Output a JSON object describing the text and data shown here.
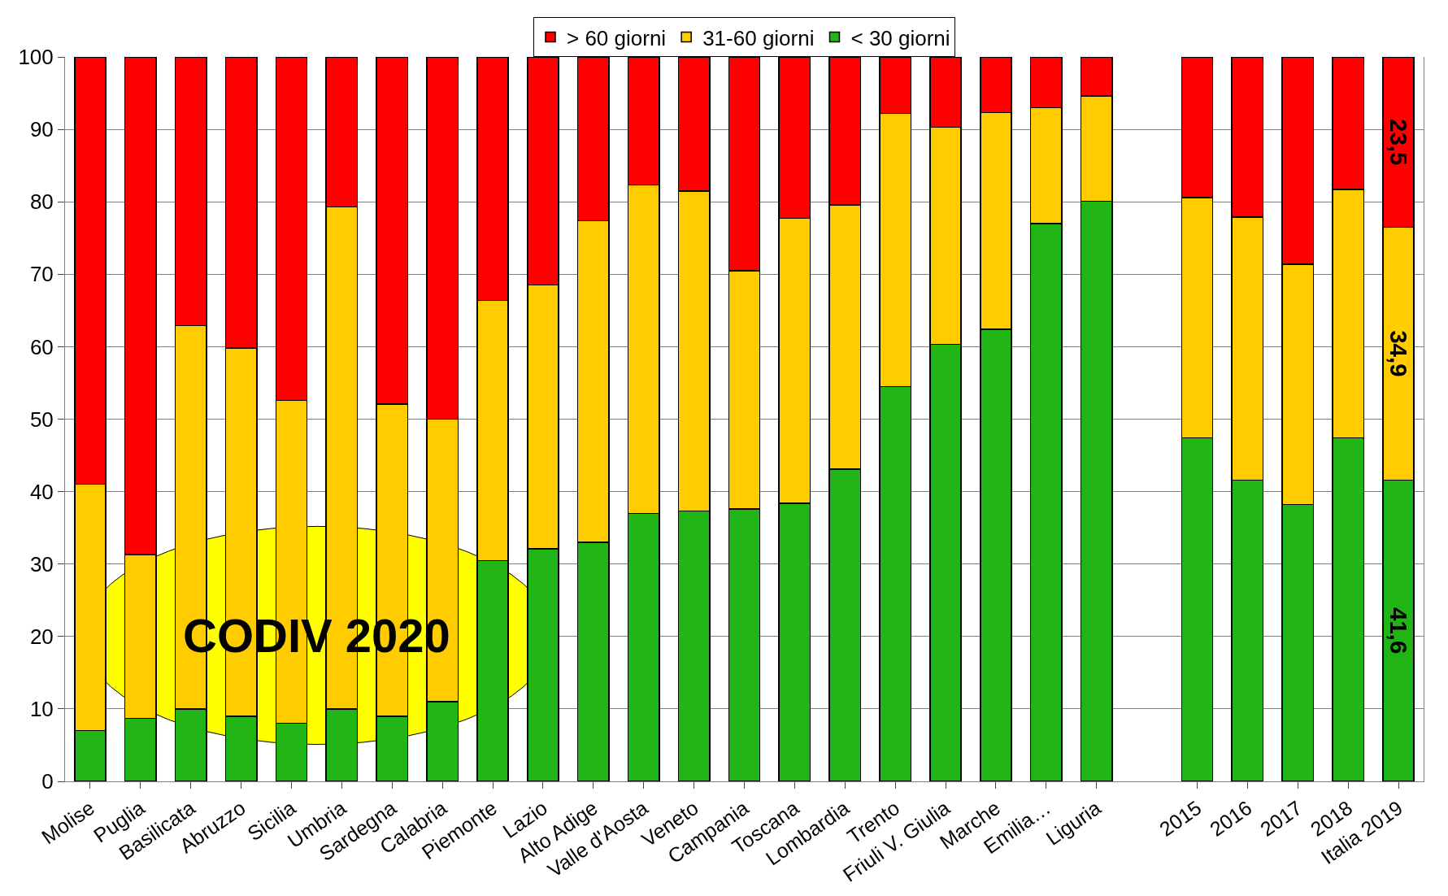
{
  "chart_data": {
    "type": "bar",
    "stacked": true,
    "categories": [
      "Molise",
      "Puglia",
      "Basilicata",
      "Abruzzo",
      "Sicilia",
      "Umbria",
      "Sardegna",
      "Calabria",
      "Piemonte",
      "Lazio",
      "Alto Adige",
      "Valle d'Aosta",
      "Veneto",
      "Campania",
      "Toscana",
      "Lombardia",
      "Trento",
      "Friuli V. Giulia",
      "Marche",
      "Emilia…",
      "Liguria",
      null,
      "2015",
      "2016",
      "2017",
      "2018",
      "Italia 2019"
    ],
    "series": [
      {
        "name": "< 30 giorni",
        "color": "#22b516",
        "values": [
          7.0,
          8.7,
          10,
          9,
          8,
          10,
          9,
          11,
          30.5,
          32.1,
          33.0,
          37.0,
          37.3,
          37.6,
          38.4,
          43.1,
          54.5,
          60.3,
          62.4,
          77.0,
          80.1,
          null,
          47.4,
          41.6,
          38.2,
          47.4,
          41.6
        ],
        "value_labels": [
          null,
          null,
          null,
          null,
          null,
          null,
          null,
          null,
          null,
          null,
          null,
          null,
          null,
          null,
          null,
          null,
          null,
          null,
          null,
          null,
          null,
          null,
          null,
          null,
          null,
          null,
          "41,6"
        ]
      },
      {
        "name": "31-60 giorni",
        "color": "#ffcc00",
        "values": [
          34.0,
          22.6,
          52.9,
          50.8,
          44.6,
          69.3,
          43.1,
          39.0,
          35.9,
          36.4,
          44.4,
          45.3,
          44.2,
          32.9,
          39.3,
          36.5,
          37.7,
          30.0,
          29.9,
          16.0,
          14.5,
          null,
          33.2,
          36.3,
          33.2,
          34.3,
          34.9
        ],
        "value_labels": [
          null,
          null,
          null,
          null,
          null,
          null,
          null,
          null,
          null,
          null,
          null,
          null,
          null,
          null,
          null,
          null,
          null,
          null,
          null,
          null,
          null,
          null,
          null,
          null,
          null,
          null,
          "34,9"
        ]
      },
      {
        "name": "> 60 giorni",
        "color": "#ff0000",
        "values": [
          59.0,
          68.7,
          37.1,
          40.2,
          47.4,
          20.7,
          47.9,
          50.0,
          33.6,
          31.5,
          22.6,
          17.7,
          18.5,
          29.5,
          22.3,
          20.4,
          7.8,
          9.7,
          7.7,
          7.0,
          5.4,
          null,
          19.4,
          22.1,
          28.6,
          18.3,
          23.5
        ],
        "value_labels": [
          null,
          null,
          null,
          null,
          null,
          null,
          null,
          null,
          null,
          null,
          null,
          null,
          null,
          null,
          null,
          null,
          null,
          null,
          null,
          null,
          null,
          null,
          null,
          null,
          null,
          null,
          "23,5"
        ]
      }
    ],
    "ylim": [
      0,
      100
    ],
    "yticks": [
      0,
      10,
      20,
      30,
      40,
      50,
      60,
      70,
      80,
      90,
      100
    ],
    "grid": "y",
    "legend": "top",
    "annotations": [
      "CODIV 2020"
    ]
  }
}
